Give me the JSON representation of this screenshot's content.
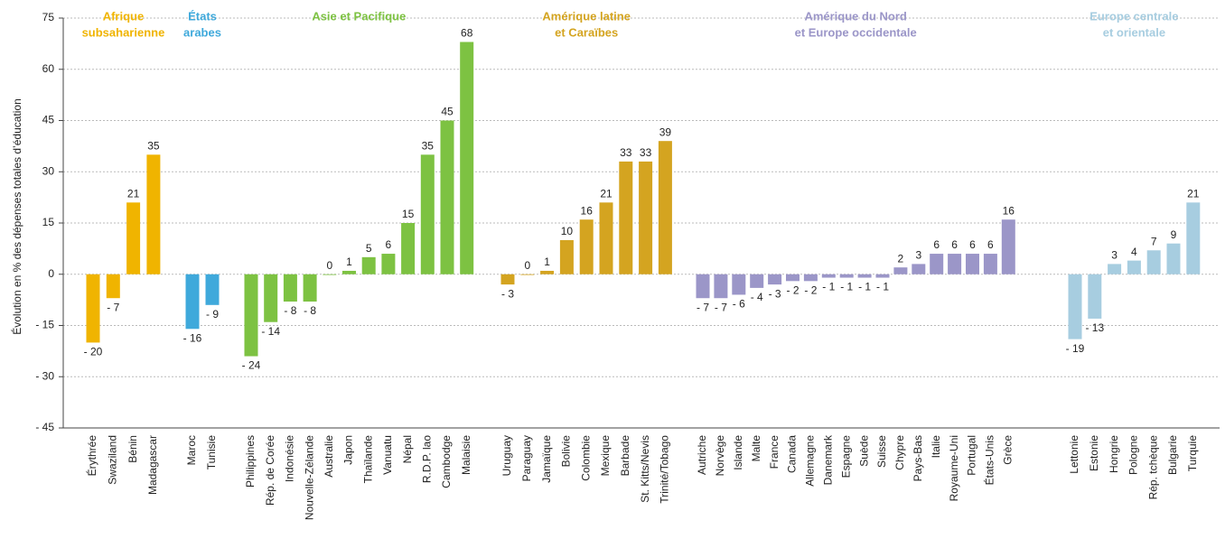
{
  "chart_data": {
    "type": "bar",
    "ylabel": "Évolution en %  des dépenses totales d’éducation",
    "ylim": [
      -45,
      75
    ],
    "yticks": [
      {
        "value": -45,
        "label": "- 45"
      },
      {
        "value": -30,
        "label": "- 30"
      },
      {
        "value": -15,
        "label": "- 15"
      },
      0,
      15,
      30,
      45,
      60,
      75
    ],
    "grid": true,
    "groups": [
      {
        "name": [
          "Afrique",
          "subsaharienne"
        ],
        "color": "#f0b400",
        "categories": [
          "Érythrée",
          "Swaziland",
          "Bénin",
          "Madagascar"
        ],
        "values": [
          -20,
          -7,
          21,
          35
        ],
        "value_labels": [
          "- 20",
          "- 7",
          "21",
          "35"
        ]
      },
      {
        "name": [
          "États",
          "arabes"
        ],
        "color": "#3fa9db",
        "categories": [
          "Maroc",
          "Tunisie"
        ],
        "values": [
          -16,
          -9
        ],
        "value_labels": [
          "- 16",
          "- 9"
        ]
      },
      {
        "name": [
          "Asie et Pacifique"
        ],
        "color": "#7dc242",
        "categories": [
          "Philippines",
          "Rép. de Corée",
          "Indonésie",
          "Nouvelle-Zélande",
          "Australie",
          "Japon",
          "Thaïlande",
          "Vanuatu",
          "Népal",
          "R.D.P. lao",
          "Cambodge",
          "Malaisie"
        ],
        "values": [
          -24,
          -14,
          -8,
          -8,
          0,
          1,
          5,
          6,
          15,
          35,
          45,
          68
        ],
        "value_labels": [
          "- 24",
          "- 14",
          "- 8",
          "- 8",
          "0",
          "1",
          "5",
          "6",
          "15",
          "35",
          "45",
          "68"
        ]
      },
      {
        "name": [
          "Amérique latine",
          "et Caraïbes"
        ],
        "color": "#d4a420",
        "categories": [
          "Uruguay",
          "Paraguay",
          "Jamaïque",
          "Bolivie",
          "Colombie",
          "Mexique",
          "Barbade",
          "St. Kitts/Nevis",
          "Trinité/Tobago"
        ],
        "values": [
          -3,
          0,
          1,
          10,
          16,
          21,
          33,
          33,
          39
        ],
        "value_labels": [
          "- 3",
          "0",
          "1",
          "10",
          "16",
          "21",
          "33",
          "33",
          "39"
        ]
      },
      {
        "name": [
          "Amérique du Nord",
          "et Europe occidentale"
        ],
        "color": "#9b96c8",
        "categories": [
          "Autriche",
          "Norvège",
          "Islande",
          "Malte",
          "France",
          "Canada",
          "Allemagne",
          "Danemark",
          "Espagne",
          "Suède",
          "Suisse",
          "Chypre",
          "Pays-Bas",
          "Italie",
          "Royaume-Uni",
          "Portugal",
          "États-Unis",
          "Grèce"
        ],
        "values": [
          -7,
          -7,
          -6,
          -4,
          -3,
          -2,
          -2,
          -1,
          -1,
          -1,
          -1,
          2,
          3,
          6,
          6,
          6,
          6,
          16
        ],
        "value_labels": [
          "- 7",
          "- 7",
          "- 6",
          "- 4",
          "- 3",
          "- 2",
          "- 2",
          "- 1",
          "- 1",
          "- 1",
          "- 1",
          "2",
          "3",
          "6",
          "6",
          "6",
          "6",
          "16"
        ]
      },
      {
        "name": [
          "Europe centrale",
          "et orientale"
        ],
        "color": "#a7cde0",
        "categories": [
          "Lettonie",
          "Estonie",
          "Hongrie",
          "Pologne",
          "Rép. tchèque",
          "Bulgarie",
          "Turquie"
        ],
        "values": [
          -19,
          -13,
          3,
          4,
          7,
          9,
          21
        ],
        "value_labels": [
          "- 19",
          "- 13",
          "3",
          "4",
          "7",
          "9",
          "21"
        ]
      }
    ]
  }
}
